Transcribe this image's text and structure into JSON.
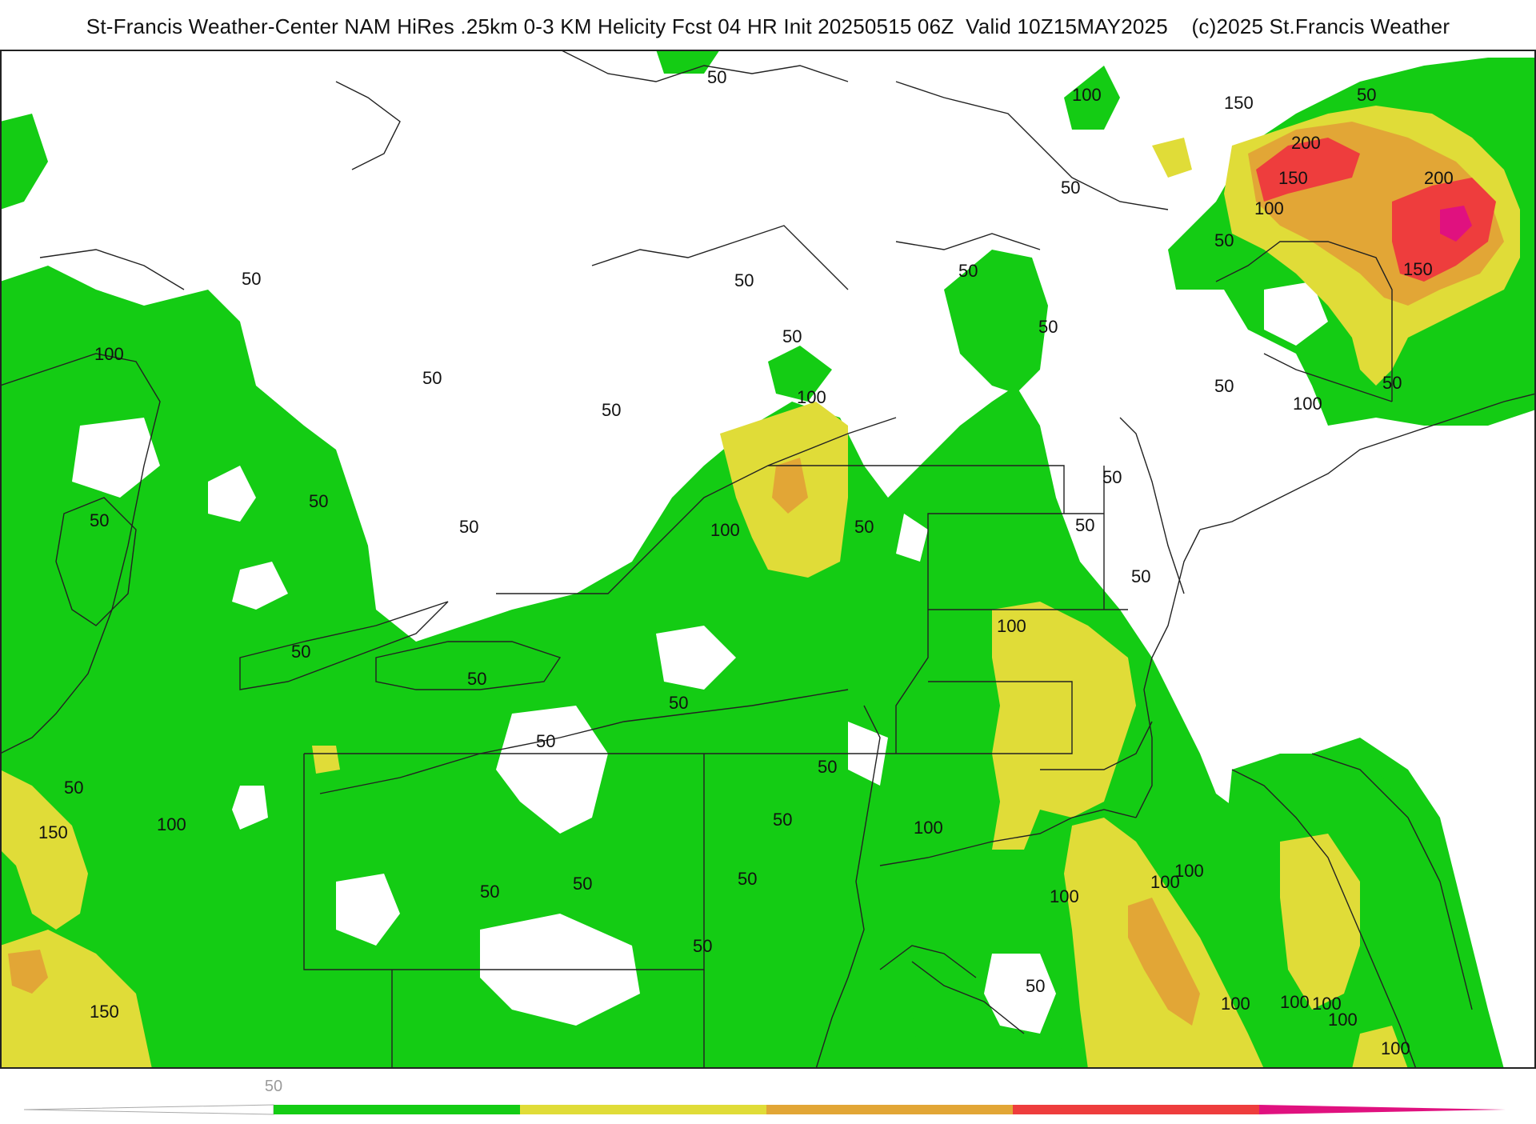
{
  "header": {
    "title": "St-Francis Weather-Center NAM HiRes .25km 0-3 KM Helicity Fcst 04 HR Init 20250515 06Z  Valid 10Z15MAY2025    (c)2025 St.Francis Weather"
  },
  "palette": {
    "water": "#ffffff",
    "green": "#14cc14",
    "yellow": "#e0dc38",
    "orange": "#e2a636",
    "red": "#ee3d3d",
    "magenta": "#e0117f",
    "contour": "#111111",
    "border": "#222222",
    "county": "#bdbdbd"
  },
  "contour_labels": [
    "50",
    "100",
    "150",
    "50",
    "150",
    "200",
    "150",
    "200",
    "100",
    "50",
    "50",
    "50",
    "50",
    "50",
    "50",
    "100",
    "50",
    "50",
    "50",
    "50",
    "50",
    "100",
    "100",
    "50",
    "50",
    "50",
    "50",
    "100",
    "50",
    "100",
    "50",
    "50",
    "50",
    "50",
    "50",
    "50",
    "50",
    "100",
    "50",
    "100",
    "50",
    "50",
    "50",
    "50",
    "50",
    "100",
    "150",
    "150",
    "100",
    "100",
    "100",
    "100",
    "50",
    "100",
    "100",
    "100"
  ],
  "colorbar": {
    "tick_label": "50",
    "segments": [
      {
        "value": 50,
        "color": "#14cc14"
      },
      {
        "value": 100,
        "color": "#e0dc38"
      },
      {
        "value": 150,
        "color": "#e2a636"
      },
      {
        "value": 200,
        "color": "#ee3d3d"
      },
      {
        "value": 250,
        "color": "#e0117f"
      }
    ]
  }
}
